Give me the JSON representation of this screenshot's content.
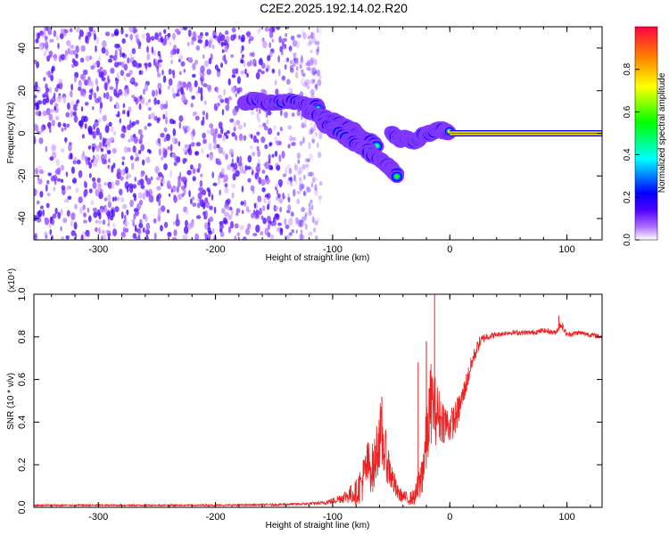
{
  "title": "C2E2.2025.192.14.02.R20",
  "chart_data": [
    {
      "type": "heatmap",
      "xlabel": "Height of straight line (km)",
      "ylabel": "Frequency (Hz)",
      "xlim": [
        -355,
        130
      ],
      "ylim": [
        -50,
        50
      ],
      "xticks": [
        -300,
        -200,
        -100,
        0,
        100
      ],
      "yticks": [
        -40,
        -20,
        0,
        20,
        40
      ],
      "colorbar": {
        "label": "Normalized spectral amplitude",
        "range": [
          0,
          1
        ],
        "ticks": [
          0.0,
          0.2,
          0.4,
          0.6,
          0.8
        ],
        "colors": [
          "#ffffff",
          "#b070ff",
          "#5000ff",
          "#0000ff",
          "#00ffff",
          "#00ff00",
          "#ffff00",
          "#ff8000",
          "#ff0040"
        ]
      },
      "noise_region": {
        "x": [
          -355,
          -110
        ],
        "y": [
          -50,
          50
        ],
        "amplitude": 0.1
      },
      "signal_tracks": [
        {
          "x": [
            -175,
            -165,
            -155,
            -140,
            -125,
            -118,
            -112
          ],
          "y": [
            14,
            16,
            14,
            15,
            14,
            13,
            12
          ],
          "amplitude": 0.45
        },
        {
          "x": [
            -120,
            -110,
            -100,
            -92,
            -85,
            -80,
            -75,
            -68,
            -62
          ],
          "y": [
            10,
            8,
            6,
            4,
            2,
            0,
            -2,
            -4,
            -6
          ],
          "amplitude": 0.5
        },
        {
          "x": [
            -110,
            -100,
            -90,
            -80,
            -70,
            -60,
            -52,
            -48,
            -45
          ],
          "y": [
            5,
            2,
            -2,
            -5,
            -8,
            -12,
            -16,
            -18,
            -20
          ],
          "amplitude": 0.45
        },
        {
          "x": [
            -50,
            -42,
            -36,
            -30,
            -25,
            -18,
            -10,
            -5,
            0
          ],
          "y": [
            0,
            -3,
            -2,
            -4,
            -2,
            0,
            2,
            1,
            1
          ],
          "amplitude": 0.6
        },
        {
          "x": [
            0,
            20,
            40,
            60,
            80,
            100,
            130
          ],
          "y": [
            0,
            0,
            0,
            0,
            0,
            0,
            0
          ],
          "amplitude": 0.95
        }
      ]
    },
    {
      "type": "line",
      "xlabel": "Height of straight line (km)",
      "ylabel": "SNR (10 * v/v)",
      "y_multiplier": "(x10⁴)",
      "xlim": [
        -355,
        130
      ],
      "ylim": [
        0,
        1.0
      ],
      "xticks": [
        -300,
        -200,
        -100,
        0,
        100
      ],
      "yticks": [
        0.0,
        0.2,
        0.4,
        0.6,
        0.8,
        1.0
      ],
      "color": "#ee2222",
      "series": [
        {
          "x": [
            -355,
            -300,
            -250,
            -200,
            -160,
            -130,
            -110,
            -100,
            -90,
            -80,
            -75,
            -70,
            -65,
            -60,
            -55,
            -50,
            -45,
            -40,
            -35,
            -30,
            -25,
            -20,
            -16,
            -12,
            -8,
            -4,
            0,
            5,
            10,
            15,
            20,
            25,
            30,
            40,
            50,
            60,
            70,
            80,
            90,
            95,
            100,
            110,
            120,
            130
          ],
          "y": [
            0.01,
            0.01,
            0.01,
            0.01,
            0.012,
            0.015,
            0.02,
            0.03,
            0.05,
            0.07,
            0.12,
            0.2,
            0.18,
            0.35,
            0.25,
            0.15,
            0.07,
            0.05,
            0.04,
            0.05,
            0.12,
            0.3,
            0.5,
            0.45,
            0.42,
            0.4,
            0.38,
            0.42,
            0.5,
            0.6,
            0.7,
            0.77,
            0.8,
            0.81,
            0.82,
            0.82,
            0.82,
            0.83,
            0.82,
            0.86,
            0.81,
            0.82,
            0.81,
            0.8
          ],
          "amplitude": [
            0.004,
            0.004,
            0.004,
            0.004,
            0.005,
            0.006,
            0.008,
            0.015,
            0.03,
            0.06,
            0.1,
            0.12,
            0.12,
            0.17,
            0.12,
            0.08,
            0.04,
            0.03,
            0.03,
            0.04,
            0.1,
            0.16,
            0.2,
            0.16,
            0.12,
            0.1,
            0.08,
            0.08,
            0.06,
            0.05,
            0.04,
            0.03,
            0.02,
            0.012,
            0.012,
            0.012,
            0.012,
            0.012,
            0.012,
            0.02,
            0.012,
            0.012,
            0.012,
            0.012
          ]
        }
      ],
      "spikes": [
        {
          "x": -13,
          "y": 1.0
        },
        {
          "x": -20,
          "y": 0.78
        },
        {
          "x": -27,
          "y": 0.68
        },
        {
          "x": -58,
          "y": 0.52
        },
        {
          "x": 93,
          "y": 0.9
        }
      ]
    }
  ]
}
